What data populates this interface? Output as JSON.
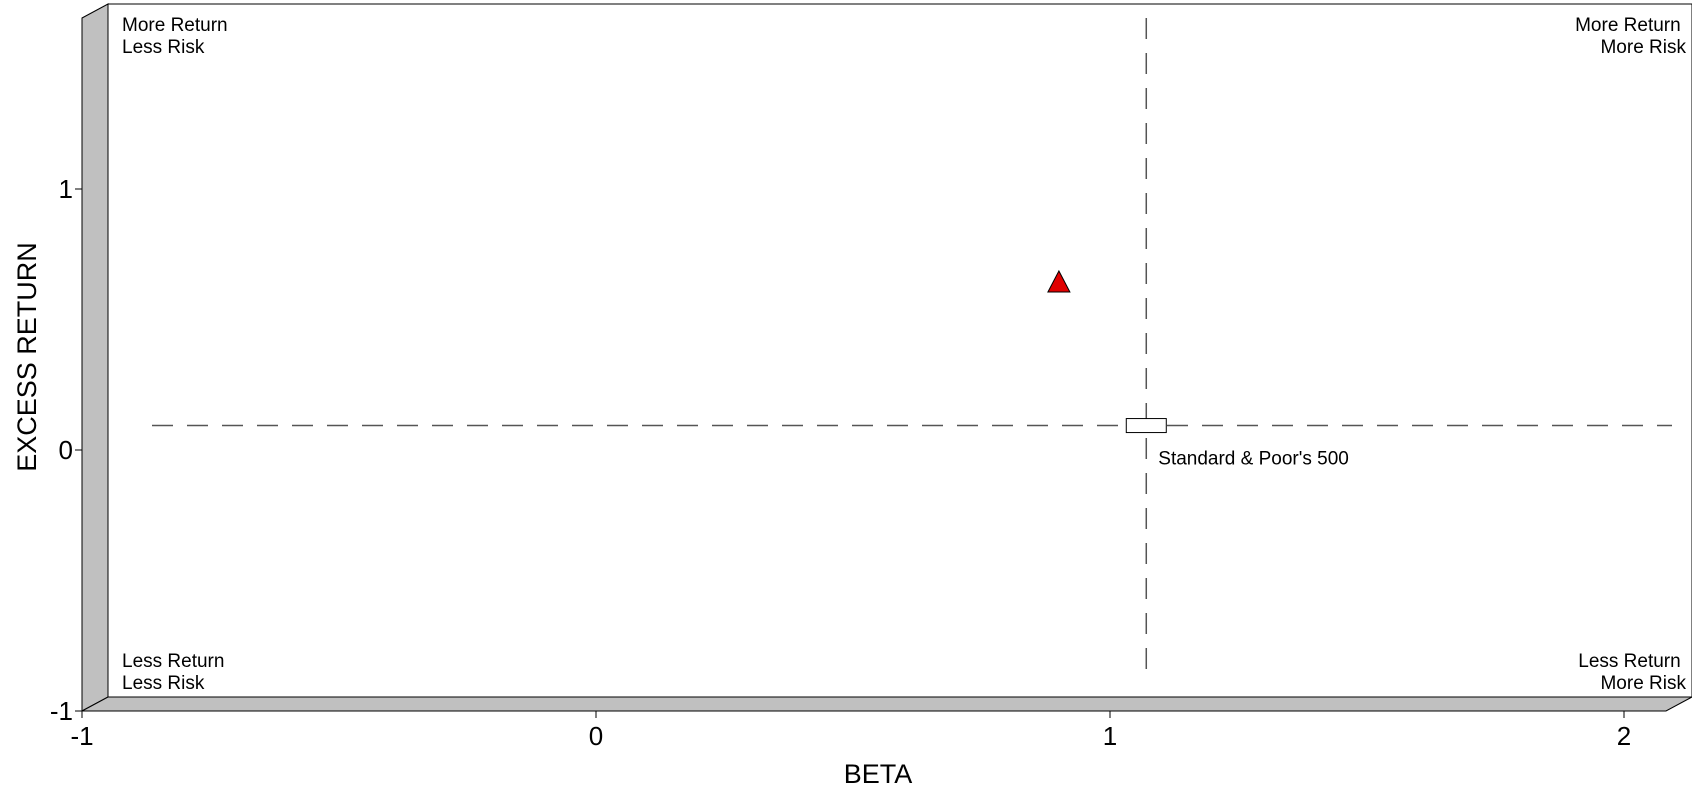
{
  "chart_data": {
    "type": "scatter",
    "title": "",
    "xlabel": "BETA",
    "ylabel": "EXCESS RETURN",
    "xlim": [
      -1,
      2
    ],
    "ylim": [
      -1,
      1.7
    ],
    "x_ticks": [
      "-1",
      "0",
      "1",
      "2"
    ],
    "y_ticks": [
      "-1",
      "0",
      "1"
    ],
    "grid": false,
    "reference_lines": {
      "beta": 1.02,
      "excess_return": 0.04
    },
    "quadrant_labels": {
      "top_left": [
        "More Return",
        "Less Risk"
      ],
      "top_right": [
        "More Return",
        "More Risk"
      ],
      "bottom_left": [
        "Less Return",
        "Less Risk"
      ],
      "bottom_right": [
        "Less Return",
        "More Risk"
      ]
    },
    "points": [
      {
        "label": "",
        "x": 0.85,
        "y": 0.59,
        "marker": "triangle",
        "color": "#e00000"
      },
      {
        "label": "Standard & Poor's 500",
        "x": 1.02,
        "y": 0.04,
        "marker": "rectangle",
        "color": "#ffffff"
      }
    ]
  }
}
